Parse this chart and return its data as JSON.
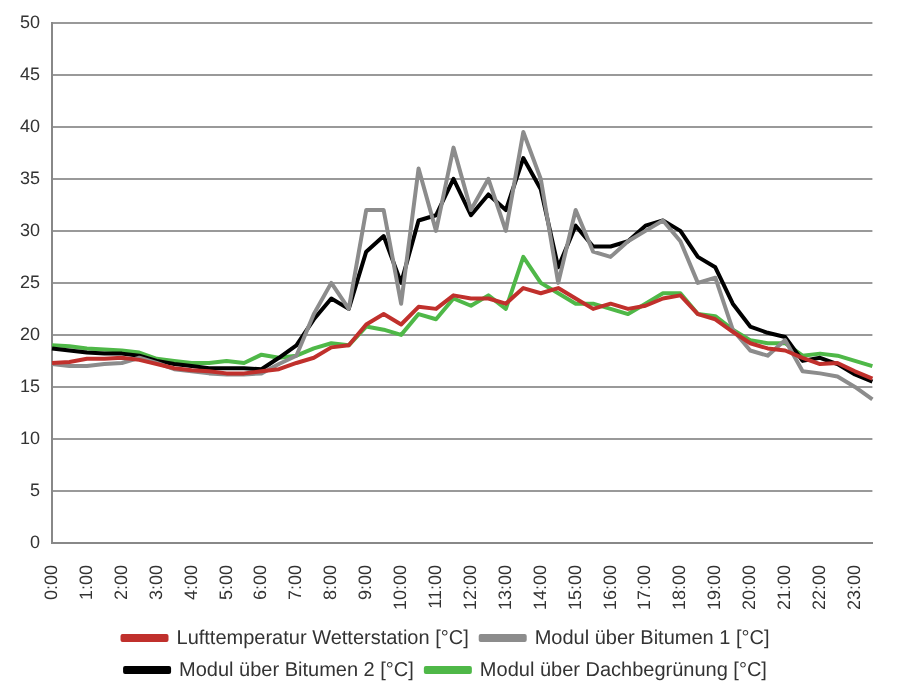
{
  "chart_data": {
    "type": "line",
    "categories": [
      "0:00",
      null,
      "1:00",
      null,
      "2:00",
      null,
      "3:00",
      null,
      "4:00",
      null,
      "5:00",
      null,
      "6:00",
      null,
      "7:00",
      null,
      "8:00",
      null,
      "9:00",
      null,
      "10:00",
      null,
      "11:00",
      null,
      "12:00",
      null,
      "13:00",
      null,
      "14:00",
      null,
      "15:00",
      null,
      "16:00",
      null,
      "17:00",
      null,
      "18:00",
      null,
      "19:00",
      null,
      "20:00",
      null,
      "21:00",
      null,
      "22:00",
      null,
      "23:00",
      null
    ],
    "ylim": [
      0,
      50
    ],
    "yticks": [
      0,
      5,
      10,
      15,
      20,
      25,
      30,
      35,
      40,
      45,
      50
    ],
    "grid": "y",
    "legend": "bottom",
    "marker": "none",
    "line_style": "solid",
    "series": [
      {
        "name": "Lufttemperatur Wetterstation [°C]",
        "color": "#c0302c",
        "values": [
          17.3,
          17.4,
          17.7,
          17.7,
          17.8,
          17.6,
          17.2,
          16.8,
          16.6,
          16.5,
          16.3,
          16.3,
          16.5,
          16.7,
          17.3,
          17.8,
          18.8,
          19,
          21,
          22,
          21,
          22.7,
          22.5,
          23.8,
          23.5,
          23.5,
          23,
          24.5,
          24,
          24.5,
          23.5,
          22.5,
          23,
          22.5,
          22.8,
          23.5,
          23.8,
          22,
          21.5,
          20.3,
          19.2,
          18.7,
          18.5,
          17.8,
          17.2,
          17.3,
          16.5,
          15.8
        ]
      },
      {
        "name": "Modul über Bitumen 1 [°C]",
        "color": "#8c8c8c",
        "values": [
          17.2,
          17,
          17,
          17.2,
          17.3,
          17.8,
          17.3,
          16.7,
          16.5,
          16.3,
          16.2,
          16.2,
          16.3,
          17.2,
          18,
          22,
          25,
          22.5,
          32,
          32,
          23,
          36,
          30,
          38,
          32,
          35,
          30,
          39.5,
          35,
          25,
          32,
          28,
          27.5,
          29,
          30,
          31,
          29,
          25,
          25.5,
          20.5,
          18.5,
          18,
          19.5,
          16.5,
          16.3,
          16,
          15,
          13.8
        ]
      },
      {
        "name": "Modul über Bitumen 2 [°C]",
        "color": "#000000",
        "values": [
          18.7,
          18.5,
          18.3,
          18.2,
          18.2,
          18,
          17.5,
          17.2,
          17,
          16.8,
          16.8,
          16.8,
          16.7,
          17.8,
          19,
          21.5,
          23.5,
          22.5,
          28,
          29.5,
          25,
          31,
          31.5,
          35,
          31.5,
          33.5,
          32,
          37,
          34,
          26.5,
          30.5,
          28.5,
          28.5,
          29,
          30.5,
          31,
          30,
          27.5,
          26.5,
          23,
          20.8,
          20.2,
          19.8,
          17.5,
          17.8,
          17.2,
          16.2,
          15.5
        ]
      },
      {
        "name": "Modul über Dachbegrünung [°C]",
        "color": "#4fb848",
        "values": [
          19,
          18.9,
          18.7,
          18.6,
          18.5,
          18.3,
          17.7,
          17.5,
          17.3,
          17.3,
          17.5,
          17.3,
          18.1,
          17.8,
          18,
          18.7,
          19.2,
          19,
          20.8,
          20.5,
          20,
          22,
          21.5,
          23.5,
          22.8,
          23.8,
          22.5,
          27.5,
          25,
          24,
          23,
          23,
          22.5,
          22,
          23,
          24,
          24,
          22,
          21.8,
          20.5,
          19.5,
          19.2,
          19.2,
          18,
          18.2,
          18,
          17.5,
          17
        ]
      }
    ]
  }
}
